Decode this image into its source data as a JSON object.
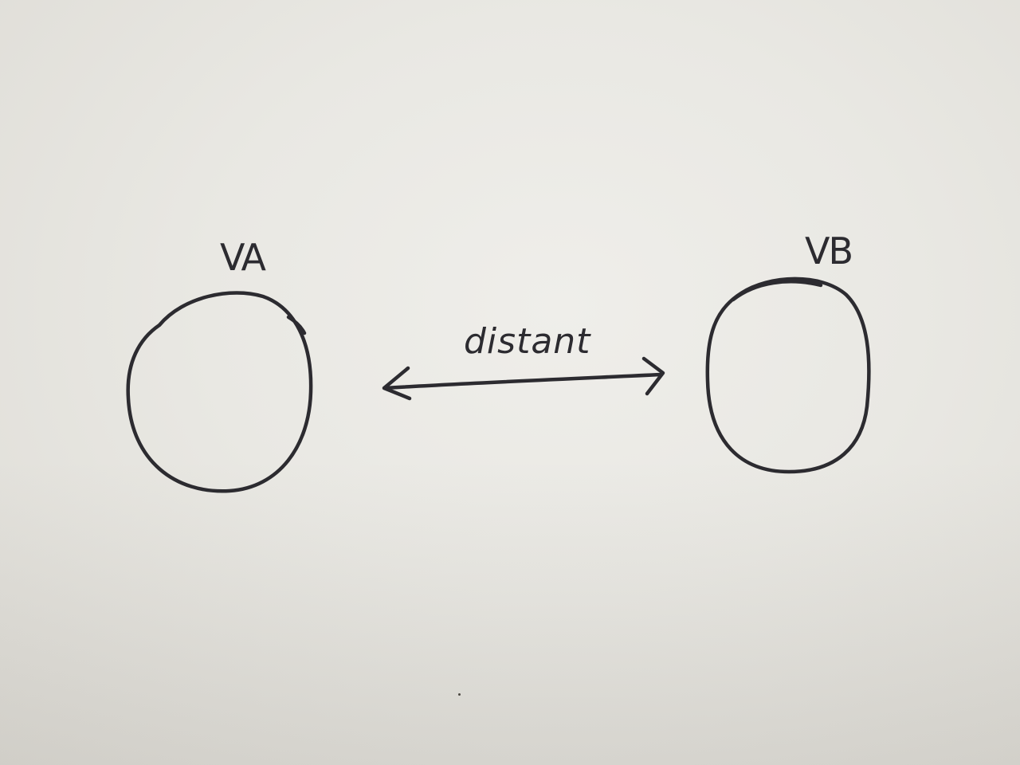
{
  "diagram": {
    "nodes": [
      {
        "id": "va",
        "label": "VA"
      },
      {
        "id": "vb",
        "label": "VB"
      }
    ],
    "edges": [
      {
        "from": "va",
        "to": "vb",
        "label": "distant",
        "direction": "bidirectional"
      }
    ],
    "ink_color": "#2c2b30",
    "paper_color": "#eceae5"
  }
}
